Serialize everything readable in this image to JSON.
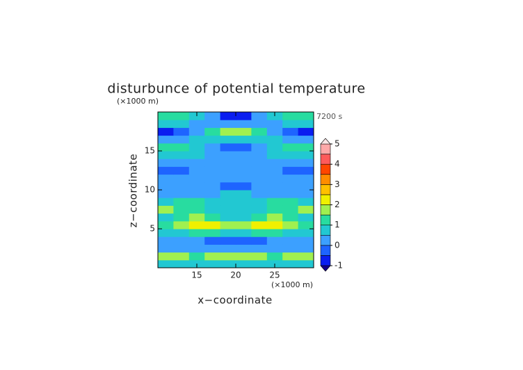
{
  "chart_data": {
    "type": "contour",
    "title": "disturbunce of potential temperature",
    "x_label": "x−coordinate",
    "y_label": "z−coordinate",
    "x_unit": "(×1000 m)",
    "y_unit": "(×1000 m)",
    "time_label": "7200 s",
    "xlim": [
      10,
      30
    ],
    "ylim": [
      0,
      20
    ],
    "xticks": [
      15,
      20,
      25
    ],
    "yticks": [
      5,
      10,
      15
    ],
    "x": [
      11,
      13,
      15,
      17,
      19,
      21,
      23,
      25,
      27,
      29
    ],
    "y": [
      0.5,
      1.5,
      2.5,
      3.5,
      4.5,
      5.5,
      6.5,
      7.5,
      8.5,
      9.5,
      10.5,
      11.5,
      12.5,
      13.5,
      14.5,
      15.5,
      16.5,
      17.5,
      18.5,
      19.5
    ],
    "z": [
      [
        0.7,
        0.7,
        0.7,
        0.7,
        0.7,
        0.7,
        0.7,
        0.7,
        0.7,
        0.7
      ],
      [
        1.7,
        1.7,
        1.2,
        1.7,
        1.7,
        1.7,
        1.7,
        1.2,
        1.7,
        1.7
      ],
      [
        0.3,
        0.3,
        0.3,
        0.3,
        0.3,
        0.3,
        0.3,
        0.3,
        0.3,
        0.3
      ],
      [
        0.3,
        0.3,
        0.3,
        -0.2,
        -0.2,
        -0.2,
        -0.2,
        0.3,
        0.3,
        0.3
      ],
      [
        0.7,
        0.7,
        1.2,
        1.2,
        0.7,
        0.7,
        1.2,
        1.2,
        0.7,
        0.7
      ],
      [
        1.2,
        1.7,
        2.2,
        2.2,
        1.7,
        1.7,
        2.2,
        2.2,
        1.7,
        1.2
      ],
      [
        0.7,
        1.2,
        1.7,
        1.2,
        0.7,
        0.7,
        1.2,
        1.7,
        1.2,
        0.7
      ],
      [
        1.7,
        1.2,
        1.2,
        0.7,
        0.7,
        0.7,
        0.7,
        1.2,
        1.2,
        1.7
      ],
      [
        0.7,
        1.2,
        1.2,
        0.7,
        0.7,
        0.7,
        0.7,
        1.2,
        1.2,
        0.7
      ],
      [
        0.3,
        0.3,
        0.3,
        0.3,
        0.7,
        0.7,
        0.3,
        0.3,
        0.3,
        0.3
      ],
      [
        0.2,
        0.2,
        0.2,
        0.2,
        -0.2,
        -0.2,
        0.2,
        0.2,
        0.2,
        0.2
      ],
      [
        0.2,
        0.2,
        0.2,
        0.2,
        0.2,
        0.2,
        0.2,
        0.2,
        0.2,
        0.2
      ],
      [
        -0.3,
        -0.3,
        0.2,
        0.2,
        0.2,
        0.2,
        0.2,
        0.2,
        -0.3,
        -0.3
      ],
      [
        0.2,
        0.2,
        0.2,
        0.2,
        0.2,
        0.2,
        0.2,
        0.2,
        0.2,
        0.2
      ],
      [
        0.7,
        0.7,
        0.7,
        0.2,
        0.2,
        0.2,
        0.2,
        0.7,
        0.7,
        0.7
      ],
      [
        1.2,
        1.2,
        0.7,
        0.2,
        -0.3,
        -0.3,
        0.2,
        0.7,
        1.2,
        1.2
      ],
      [
        0.3,
        0.3,
        0.7,
        0.7,
        0.7,
        0.7,
        0.7,
        0.7,
        0.3,
        0.3
      ],
      [
        -0.6,
        -0.3,
        0.3,
        1.2,
        1.7,
        1.7,
        1.2,
        0.3,
        -0.3,
        -0.6
      ],
      [
        0.7,
        0.7,
        0.3,
        0.3,
        0.3,
        0.3,
        0.3,
        0.3,
        0.7,
        0.7
      ],
      [
        1.2,
        1.2,
        0.7,
        0.3,
        -0.7,
        -0.7,
        0.3,
        0.7,
        1.2,
        1.2
      ]
    ],
    "levels": [
      -1,
      -0.5,
      0,
      0.5,
      1,
      1.5,
      2,
      2.5,
      3,
      3.5,
      4,
      4.5,
      5
    ],
    "colors": [
      "#14008c",
      "#0a1ef0",
      "#1e64ff",
      "#3ca0ff",
      "#22c8d2",
      "#28dca0",
      "#a0f050",
      "#f0f000",
      "#ffc000",
      "#ff8c00",
      "#ff4600",
      "#ff5a5a",
      "#ffa8a8",
      "#ffe6e6"
    ],
    "colorbar_ticks": [
      -1,
      0,
      1,
      2,
      3,
      4,
      5
    ]
  }
}
